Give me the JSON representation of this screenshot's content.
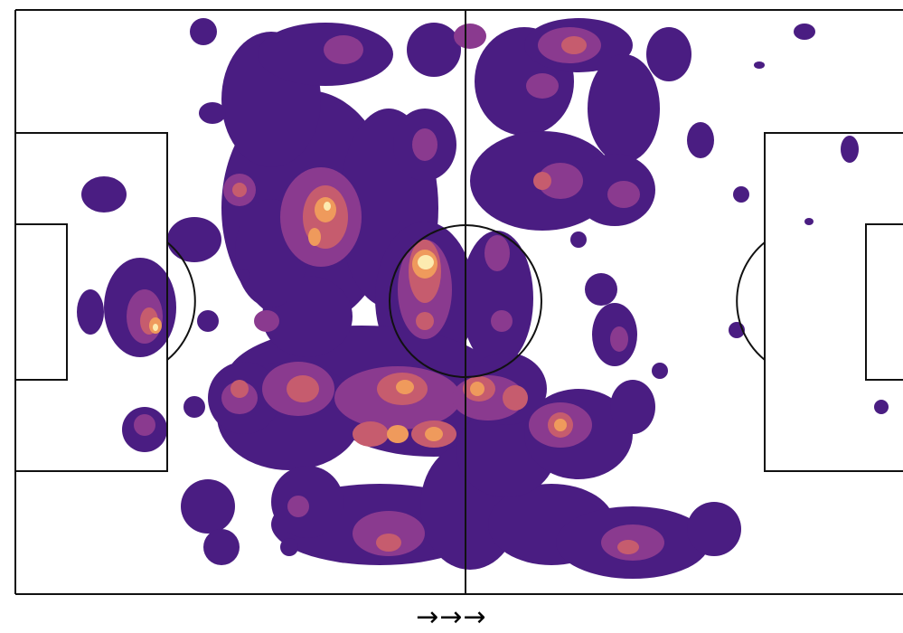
{
  "chart_data": {
    "type": "heatmap",
    "subtype": "football-pitch-density",
    "title": "",
    "xlabel": "",
    "ylabel": "",
    "attack_direction_label": "→→→",
    "pitch": {
      "line_color": "#111111",
      "background": "#ffffff",
      "orientation": "horizontal",
      "clipped_right": true
    },
    "density_levels": [
      {
        "level": 1,
        "color": "#4a1d82"
      },
      {
        "level": 2,
        "color": "#8a3a8f"
      },
      {
        "level": 3,
        "color": "#c65c6e"
      },
      {
        "level": 4,
        "color": "#ef9a5c"
      },
      {
        "level": 5,
        "color": "#fcebb0"
      }
    ],
    "hotspots": [
      {
        "x": 47,
        "y": 42,
        "level": 5
      },
      {
        "x": 34.5,
        "y": 36,
        "level": 4
      },
      {
        "x": 16.5,
        "y": 53,
        "level": 4
      },
      {
        "x": 41,
        "y": 73,
        "level": 4
      },
      {
        "x": 48,
        "y": 72,
        "level": 4
      },
      {
        "x": 44.5,
        "y": 65,
        "level": 3
      },
      {
        "x": 52.5,
        "y": 65,
        "level": 3
      },
      {
        "x": 62,
        "y": 71,
        "level": 3
      },
      {
        "x": 43,
        "y": 92,
        "level": 3
      },
      {
        "x": 70,
        "y": 93,
        "level": 3
      },
      {
        "x": 57.5,
        "y": 67,
        "level": 3
      },
      {
        "x": 33.5,
        "y": 67,
        "level": 3
      },
      {
        "x": 27,
        "y": 31,
        "level": 3
      },
      {
        "x": 26.5,
        "y": 66,
        "level": 2
      },
      {
        "x": 63,
        "y": 5,
        "level": 2
      },
      {
        "x": 60,
        "y": 20,
        "level": 2
      },
      {
        "x": 69,
        "y": 32,
        "level": 2
      },
      {
        "x": 47,
        "y": 51,
        "level": 2
      },
      {
        "x": 37,
        "y": 5,
        "level": 2
      },
      {
        "x": 55,
        "y": 43,
        "level": 2
      },
      {
        "x": 69.5,
        "y": 57,
        "level": 2
      },
      {
        "x": 15.5,
        "y": 71,
        "level": 2
      },
      {
        "x": 36,
        "y": 78,
        "level": 2
      }
    ]
  }
}
